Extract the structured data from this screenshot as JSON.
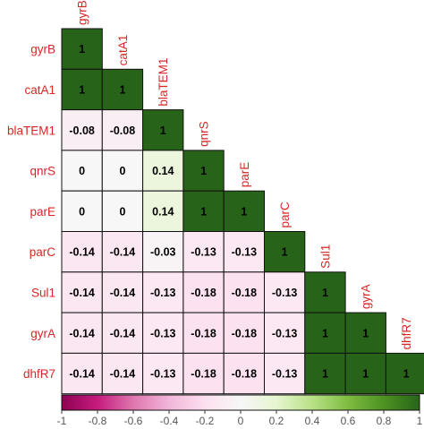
{
  "chart_data": {
    "type": "heatmap",
    "layout": "lower-triangle correlation matrix",
    "variables": [
      "gyrB",
      "catA1",
      "blaTEM1",
      "qnrS",
      "parE",
      "parC",
      "Sul1",
      "gyrA",
      "dhfR7"
    ],
    "matrix": [
      [
        1
      ],
      [
        1,
        1
      ],
      [
        -0.08,
        -0.08,
        1
      ],
      [
        0,
        0,
        0.14,
        1
      ],
      [
        0,
        0,
        0.14,
        1,
        1
      ],
      [
        -0.14,
        -0.14,
        -0.03,
        -0.13,
        -0.13,
        1
      ],
      [
        -0.14,
        -0.14,
        -0.13,
        -0.18,
        -0.18,
        -0.13,
        1
      ],
      [
        -0.14,
        -0.14,
        -0.13,
        -0.18,
        -0.18,
        -0.13,
        1,
        1
      ],
      [
        -0.14,
        -0.14,
        -0.13,
        -0.18,
        -0.18,
        -0.13,
        1,
        1,
        1
      ]
    ],
    "colorbar": {
      "range": [
        -1,
        1
      ],
      "tick_labels": [
        "-1",
        "-0.8",
        "-0.6",
        "-0.4",
        "-0.2",
        "0",
        "0.2",
        "0.4",
        "0.6",
        "0.8",
        "1"
      ],
      "colors": {
        "low": "#8e0152",
        "mid": "#f7f7f7",
        "high": "#276419"
      }
    },
    "label_color": "#d62728",
    "legend_position": "bottom"
  }
}
